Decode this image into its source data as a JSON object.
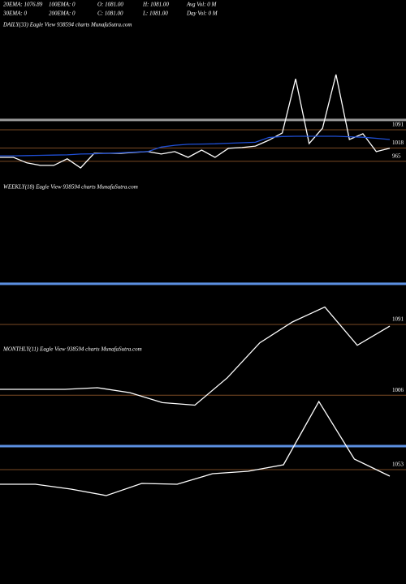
{
  "header": {
    "row1": [
      "20EMA: 1076.89",
      "100EMA: 0",
      "O: 1081.00",
      "H: 1081.00",
      "Avg Vol: 0  M"
    ],
    "row2": [
      "30EMA: 0",
      "200EMA: 0",
      "C: 1081.00",
      "L: 1081.00",
      "Day Vol: 0  M"
    ]
  },
  "chart_data": [
    {
      "type": "line",
      "title": "DAILY(33) Eagle  View  938594  charts MunafaSutra.com",
      "categories": [
        null,
        null,
        null,
        null,
        null,
        null,
        null,
        null,
        null,
        null,
        null,
        null,
        null,
        null,
        null,
        null,
        null,
        null,
        null,
        null,
        null,
        null,
        null,
        null,
        null,
        null,
        null,
        null,
        null,
        null
      ],
      "series": [
        {
          "color": "#ffffff",
          "values": [
            981,
            981,
            959,
            949,
            949,
            975,
            939,
            997,
            997,
            997,
            1001,
            1004,
            994,
            1004,
            981,
            1010,
            981,
            1017,
            1020,
            1026,
            1049,
            1078,
            1294,
            1036,
            1097,
            1311,
            1052,
            1075,
            1004,
            1017
          ]
        },
        {
          "color": "#1f4fd6",
          "values": [
            987,
            987,
            988,
            989,
            990,
            991,
            994,
            995,
            997,
            999,
            1002,
            1004,
            1022,
            1029,
            1033,
            1034,
            1035,
            1037,
            1039,
            1041,
            1060,
            1064,
            1065,
            1065,
            1065,
            1065,
            1063,
            1061,
            1057,
            1052
          ]
        }
      ],
      "level_lines": [
        {
          "value": 1130,
          "color": "#9a9a9a"
        }
      ],
      "ylim": [
        913,
        1495
      ],
      "yticks": [
        965,
        1018,
        1091
      ],
      "tick_color": "#7a4a24"
    },
    {
      "type": "line",
      "title": "WEEKLY(18) Eagle  View  938594  charts MunafaSutra.com",
      "categories": [
        null,
        null,
        null,
        null,
        null,
        null,
        null,
        null,
        null,
        null,
        null,
        null,
        null
      ],
      "series": [
        {
          "color": "#ffffff",
          "values": [
            1013,
            1013,
            1013,
            1015,
            1009,
            997,
            994,
            1027,
            1069,
            1094,
            1112,
            1066,
            1089
          ]
        }
      ],
      "level_lines": [
        {
          "value": 1140,
          "color": "#5b8fe0"
        }
      ],
      "ylim": [
        974,
        1252
      ],
      "yticks": [
        1006,
        1091
      ],
      "tick_color": "#7a4a24"
    },
    {
      "type": "line",
      "title": "MONTHLY(11) Eagle  View  938594  charts MunafaSutra.com",
      "categories": [
        null,
        null,
        null,
        null,
        null,
        null,
        null,
        null,
        null,
        null,
        null,
        null
      ],
      "series": [
        {
          "color": "#ffffff",
          "values": [
            1035,
            1035,
            1029,
            1021,
            1036,
            1035,
            1048,
            1051,
            1059,
            1137,
            1066,
            1045
          ]
        }
      ],
      "level_lines": [
        {
          "value": 1082,
          "color": "#5b8fe0"
        }
      ],
      "ylim": [
        922,
        1202
      ],
      "yticks": [
        1053
      ],
      "tick_color": "#7a4a24"
    }
  ]
}
